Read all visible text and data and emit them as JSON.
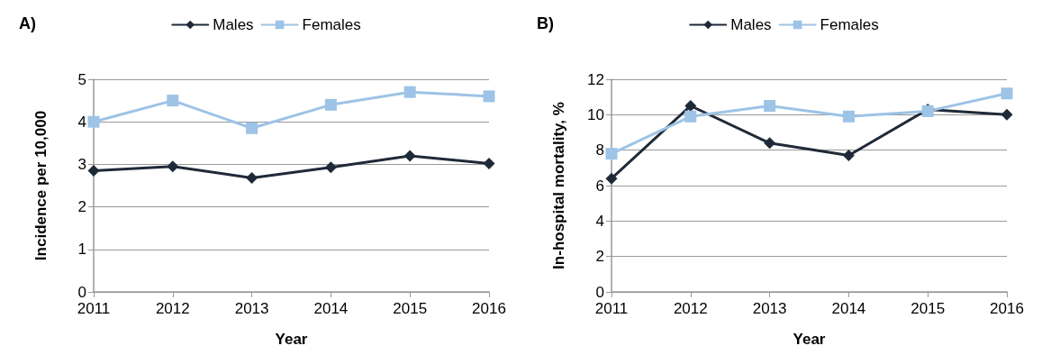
{
  "chart_data": [
    {
      "type": "line",
      "title": "A)",
      "xlabel": "Year",
      "ylabel": "Incidence per 10,000",
      "categories": [
        "2011",
        "2012",
        "2013",
        "2014",
        "2015",
        "2016"
      ],
      "series": [
        {
          "name": "Males",
          "color": "#1f2a38",
          "marker": "diamond",
          "values": [
            2.85,
            2.95,
            2.68,
            2.93,
            3.2,
            3.02
          ]
        },
        {
          "name": "Females",
          "color": "#9dc3e6",
          "marker": "square",
          "values": [
            4.0,
            4.5,
            3.85,
            4.4,
            4.7,
            4.6
          ]
        }
      ],
      "ylim": [
        0,
        5
      ],
      "yticks": [
        0,
        1,
        2,
        3,
        4,
        5
      ],
      "grid": "y",
      "legend": "top",
      "line_style": "solid"
    },
    {
      "type": "line",
      "title": "B)",
      "xlabel": "Year",
      "ylabel": "In-hospital mortality, %",
      "categories": [
        "2011",
        "2012",
        "2013",
        "2014",
        "2015",
        "2016"
      ],
      "series": [
        {
          "name": "Males",
          "color": "#1f2a38",
          "marker": "diamond",
          "values": [
            6.4,
            10.5,
            8.4,
            7.7,
            10.3,
            10.0
          ]
        },
        {
          "name": "Females",
          "color": "#9dc3e6",
          "marker": "square",
          "values": [
            7.8,
            9.9,
            10.5,
            9.9,
            10.2,
            11.2
          ]
        }
      ],
      "ylim": [
        0,
        12
      ],
      "yticks": [
        0,
        2,
        4,
        6,
        8,
        10,
        12
      ],
      "grid": "y",
      "legend": "top",
      "line_style": "solid"
    }
  ]
}
